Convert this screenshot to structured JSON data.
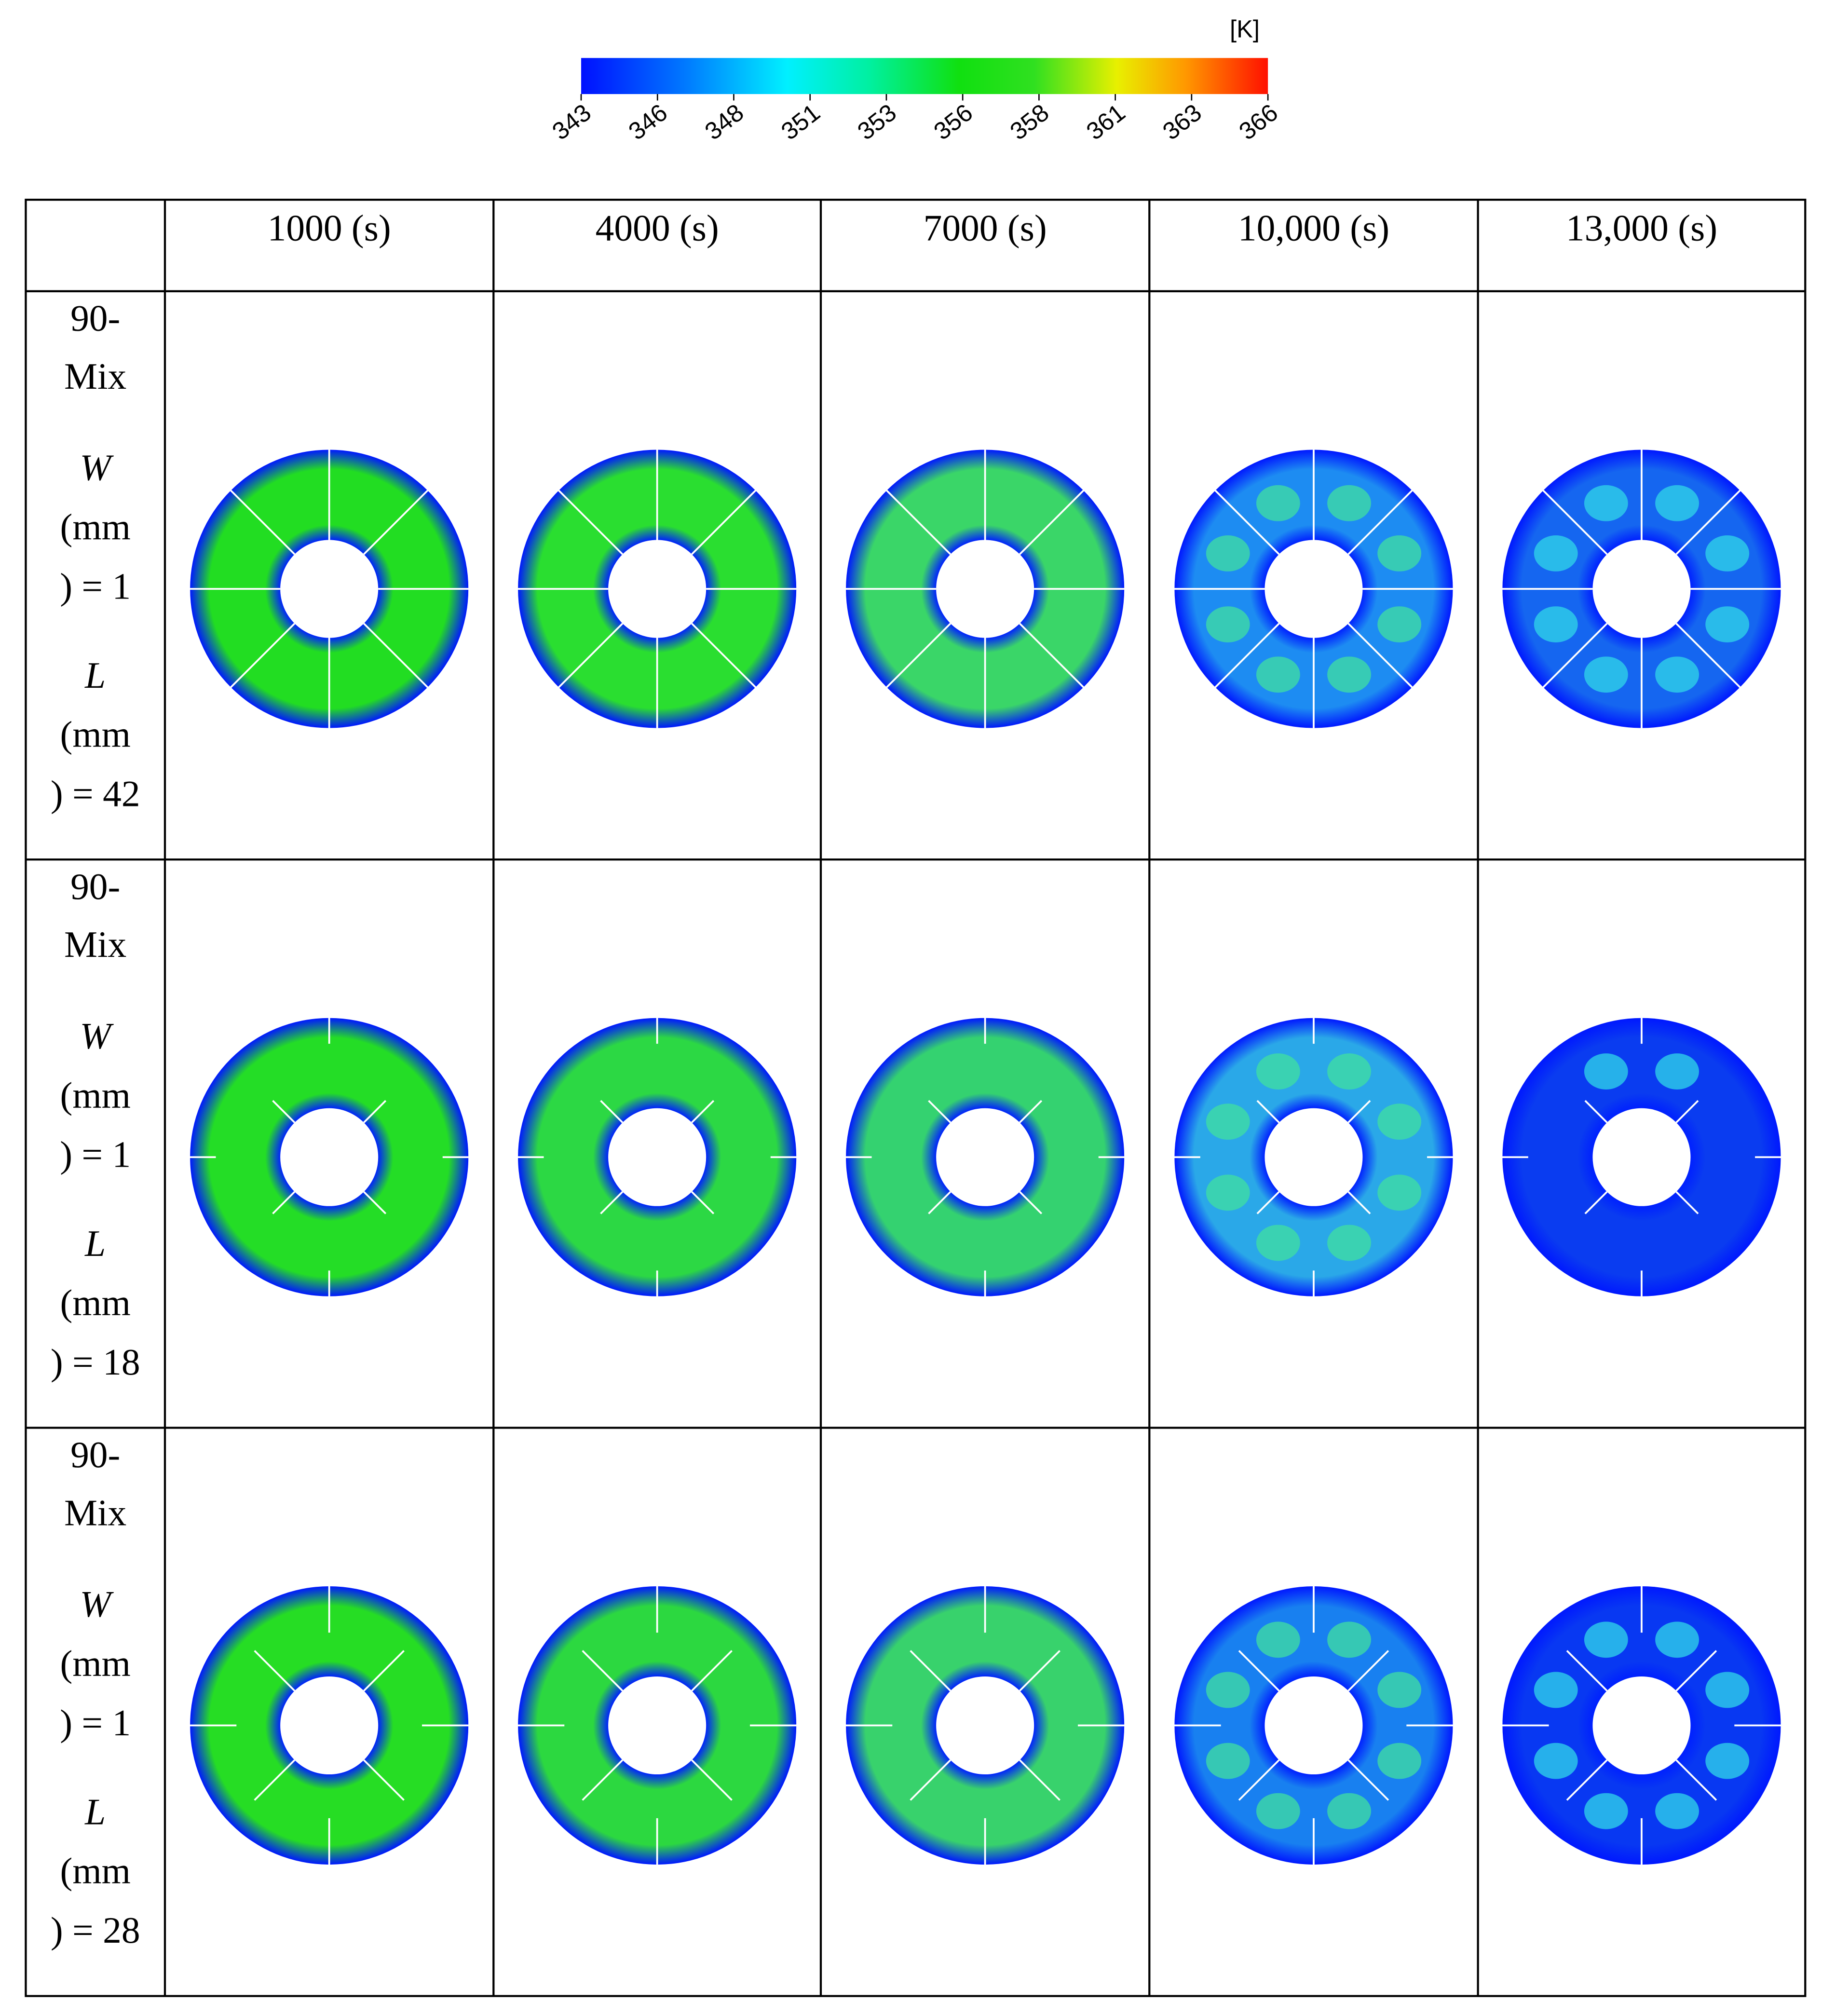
{
  "colorbar": {
    "unit": "[K]",
    "range": [
      343,
      366
    ],
    "ticks": [
      343,
      {
        "value": 345.556,
        "label": "346"
      },
      {
        "value": 348.111,
        "label": "348"
      },
      {
        "value": 350.667,
        "label": "351"
      },
      {
        "value": 353.222,
        "label": "353"
      },
      {
        "value": 355.778,
        "label": "356"
      },
      {
        "value": 358.333,
        "label": "358"
      },
      {
        "value": 360.889,
        "label": "361"
      },
      {
        "value": 363.444,
        "label": "363"
      },
      366
    ]
  },
  "table": {
    "columns": [
      "1000 (s)",
      "4000 (s)",
      "7000 (s)",
      "10,000 (s)",
      "13,000 (s)"
    ],
    "rows": [
      {
        "lines": [
          "90-",
          "Mix",
          "W",
          "(mm",
          ") = 1",
          "L",
          "(mm",
          ") = 42"
        ]
      },
      {
        "lines": [
          "90-",
          "Mix",
          "W",
          "(mm",
          ") = 1",
          "L",
          "(mm",
          ") = 18"
        ]
      },
      {
        "lines": [
          "90-",
          "Mix",
          "W",
          "(mm",
          ") = 1",
          "L",
          "(mm",
          ") = 28"
        ]
      }
    ]
  }
}
